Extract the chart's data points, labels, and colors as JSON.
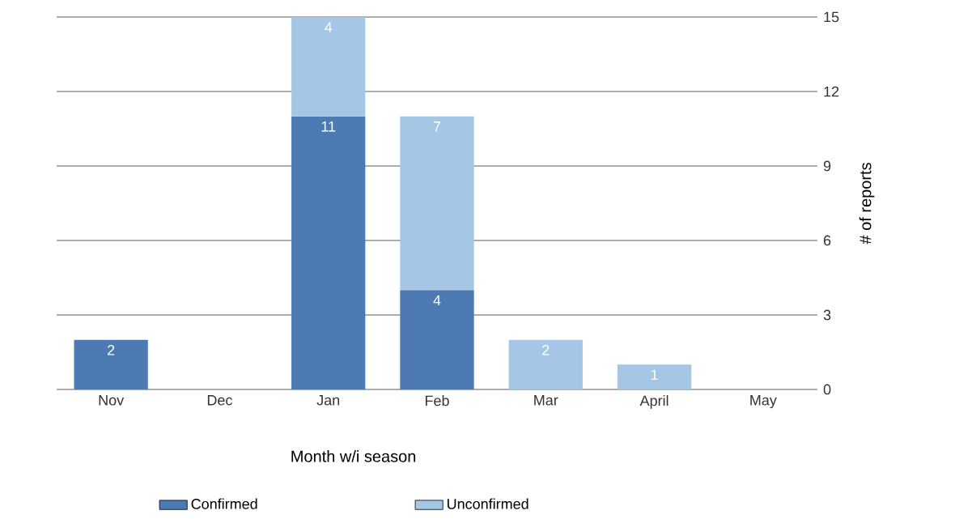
{
  "chart_data": {
    "type": "bar",
    "stacked": true,
    "xlabel": "Month w/i season",
    "ylabel": "# of reports",
    "categories": [
      "Nov",
      "Dec",
      "Jan",
      "Feb",
      "Mar",
      "April",
      "May"
    ],
    "series": [
      {
        "name": "Confirmed",
        "color": "#4d7ab3",
        "values": [
          2,
          null,
          11,
          4,
          null,
          null,
          null
        ]
      },
      {
        "name": "Unconfirmed",
        "color": "#a6c6e6",
        "values": [
          null,
          null,
          4,
          7,
          2,
          1,
          null
        ]
      }
    ],
    "ylim": [
      0,
      15
    ],
    "yticks": [
      0,
      3,
      6,
      9,
      12,
      15
    ],
    "grid": "y",
    "legend": "bottom",
    "data_labels": true
  }
}
